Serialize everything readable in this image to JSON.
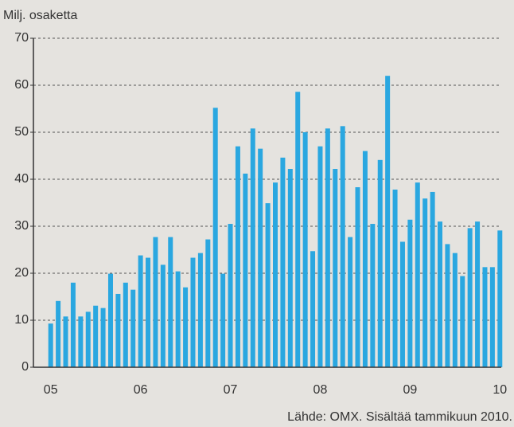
{
  "chart_data": {
    "type": "bar",
    "y_label": "Milj. osaketta",
    "source": "Lähde: OMX. Sisältää tammikuun 2010.",
    "categories": [
      "05",
      null,
      null,
      null,
      null,
      null,
      null,
      null,
      null,
      null,
      null,
      null,
      "06",
      null,
      null,
      null,
      null,
      null,
      null,
      null,
      null,
      null,
      null,
      null,
      "07",
      null,
      null,
      null,
      null,
      null,
      null,
      null,
      null,
      null,
      null,
      null,
      "08",
      null,
      null,
      null,
      null,
      null,
      null,
      null,
      null,
      null,
      null,
      null,
      "09",
      null,
      null,
      null,
      null,
      null,
      null,
      null,
      null,
      null,
      null,
      null,
      "10"
    ],
    "values": [
      9.3,
      14.1,
      10.8,
      18,
      10.8,
      11.8,
      13.1,
      12.6,
      19.9,
      15.6,
      18,
      16.5,
      23.8,
      23.3,
      27.7,
      21.8,
      27.7,
      20.4,
      17,
      23.3,
      24.3,
      27.2,
      55.2,
      19.9,
      30.5,
      47,
      41.2,
      50.8,
      46.5,
      34.9,
      39.3,
      44.6,
      42.2,
      58.6,
      50,
      24.7,
      47,
      50.8,
      42.2,
      51.3,
      27.7,
      38.3,
      46,
      30.5,
      44.1,
      62,
      37.8,
      26.7,
      31.4,
      39.3,
      35.9,
      37.3,
      31,
      26.2,
      24.3,
      19.4,
      29.6,
      31,
      21.3,
      21.3,
      29.1
    ],
    "color": "#2aa7e0",
    "ylim": [
      0,
      70
    ],
    "yticks": [
      0,
      10,
      20,
      30,
      40,
      50,
      60,
      70
    ],
    "grid": true
  }
}
